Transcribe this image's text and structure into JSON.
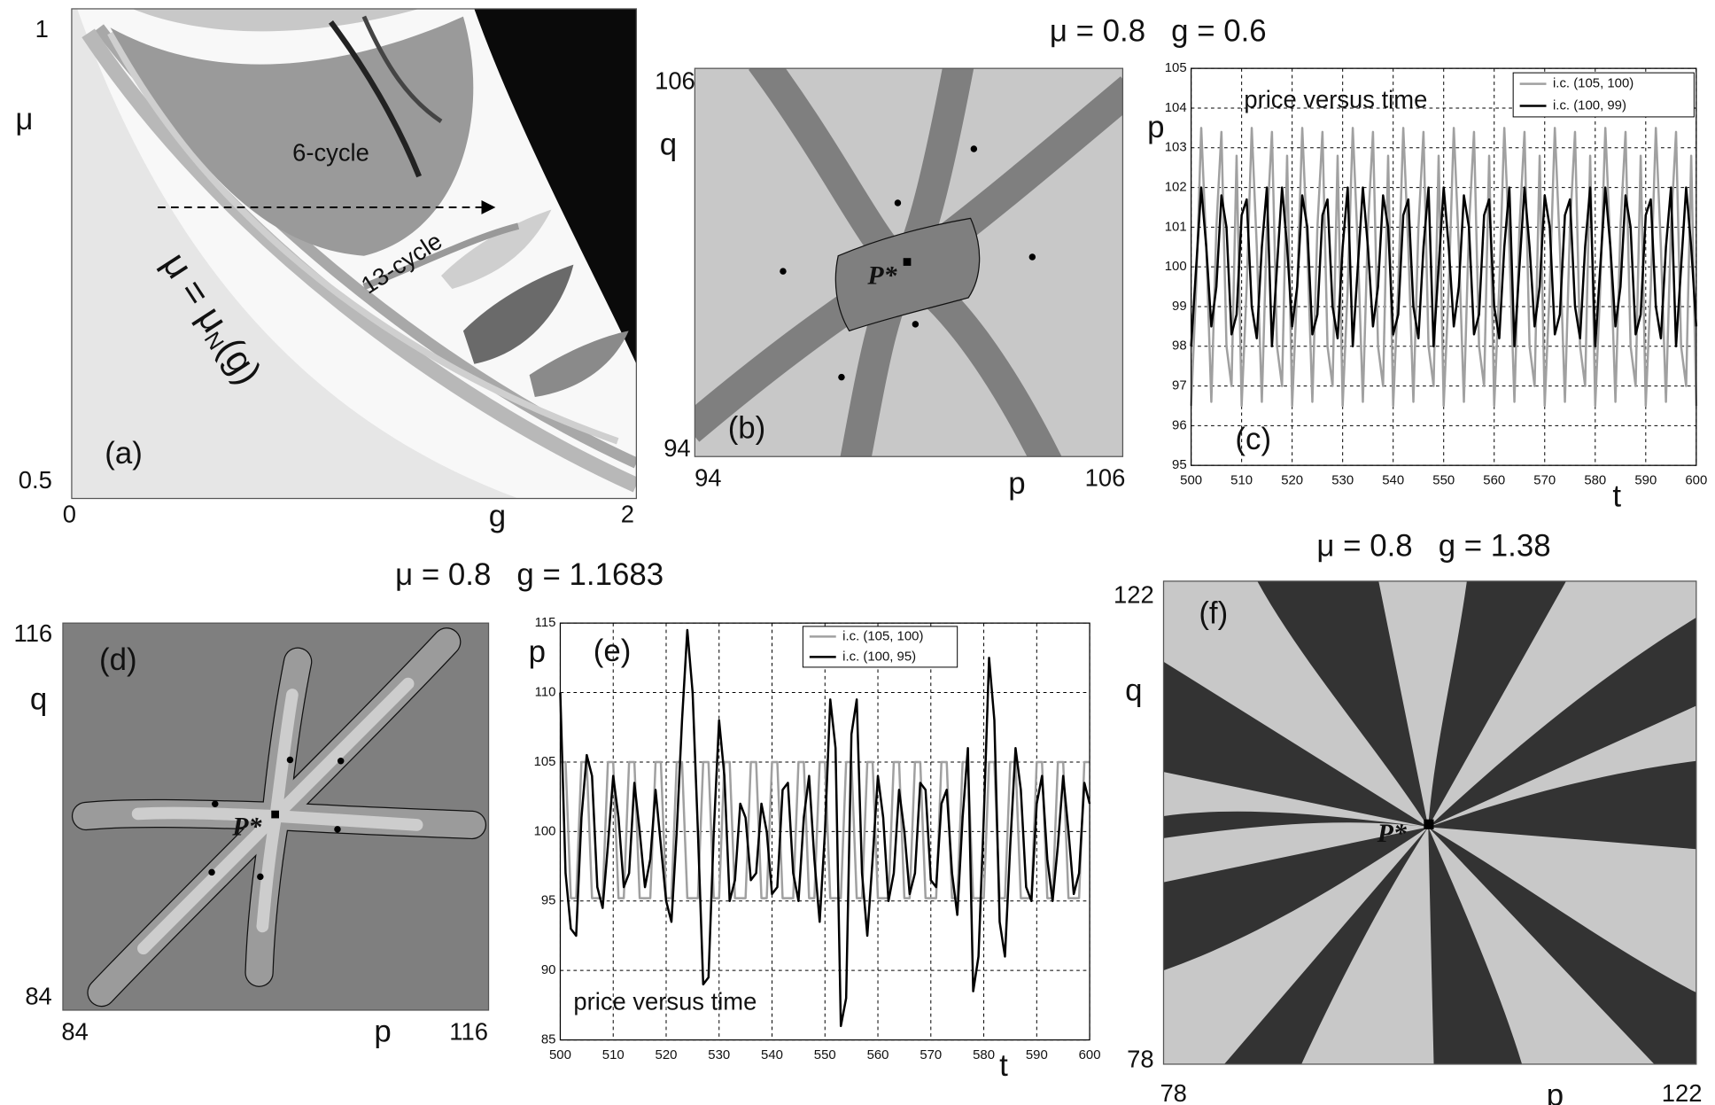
{
  "figure_titles": [
    "μ = 0.8   g = 0.6",
    "μ = 0.8   g = 1.1683",
    "μ = 0.8   g = 1.38"
  ],
  "panels": {
    "a": {
      "label": "(a)",
      "xlabel": "g",
      "ylabel": "μ",
      "xrange": [
        0,
        2
      ],
      "yrange": [
        0.5,
        1
      ],
      "annotations": [
        "6-cycle",
        "13-cycle"
      ],
      "curve_label": {
        "main": "μ = μ",
        "sub": "N",
        "tail": "(g)"
      }
    },
    "b": {
      "label": "(b)",
      "xlabel": "p",
      "ylabel": "q",
      "xrange": [
        94,
        106
      ],
      "yrange": [
        94,
        106
      ],
      "point": "P*"
    },
    "d": {
      "label": "(d)",
      "xlabel": "p",
      "ylabel": "q",
      "xrange": [
        84,
        116
      ],
      "yrange": [
        84,
        116
      ],
      "point": "P*"
    },
    "f": {
      "label": "(f)",
      "xlabel": "p",
      "ylabel": "q",
      "xrange": [
        78,
        122
      ],
      "yrange": [
        78,
        122
      ],
      "point": "P*"
    }
  },
  "chart_data": [
    {
      "type": "line",
      "label": "(c)",
      "annotation": "price versus time",
      "xlabel": "t",
      "ylabel": "p",
      "grid": true,
      "legend": "upper right",
      "xlim": [
        500,
        600
      ],
      "ylim": [
        95,
        105
      ],
      "xticks": [
        500,
        510,
        520,
        530,
        540,
        550,
        560,
        570,
        580,
        590,
        600
      ],
      "yticks": [
        95,
        96,
        97,
        98,
        99,
        100,
        101,
        102,
        103,
        104,
        105
      ],
      "x": [
        500,
        501,
        502,
        503,
        504,
        505,
        506,
        507,
        508,
        509,
        510,
        511,
        512,
        513,
        514,
        515,
        516,
        517,
        518,
        519,
        520,
        521,
        522,
        523,
        524,
        525,
        526,
        527,
        528,
        529,
        530,
        531,
        532,
        533,
        534,
        535,
        536,
        537,
        538,
        539,
        540,
        541,
        542,
        543,
        544,
        545,
        546,
        547,
        548,
        549,
        550,
        551,
        552,
        553,
        554,
        555,
        556,
        557,
        558,
        559,
        560,
        561,
        562,
        563,
        564,
        565,
        566,
        567,
        568,
        569,
        570,
        571,
        572,
        573,
        574,
        575,
        576,
        577,
        578,
        579,
        580,
        581,
        582,
        583,
        584,
        585,
        586,
        587,
        588,
        589,
        590,
        591,
        592,
        593,
        594,
        595,
        596,
        597,
        598,
        599,
        600
      ],
      "series": [
        {
          "name": "i.c. (105, 100)",
          "color": "#a0a0a0",
          "values": [
            96.5,
            99.5,
            103.5,
            100.5,
            96.6,
            101,
            103.4,
            98,
            97,
            102.8,
            96.5,
            99.5,
            103.5,
            100.5,
            96.6,
            101,
            103.4,
            98,
            97,
            102.8,
            96.5,
            99.5,
            103.5,
            100.5,
            96.6,
            101,
            103.4,
            98,
            97,
            102.8,
            96.5,
            99.5,
            103.5,
            100.5,
            96.6,
            101,
            103.4,
            98,
            97,
            102.8,
            96.5,
            99.5,
            103.5,
            100.5,
            96.6,
            101,
            103.4,
            98,
            97,
            102.8,
            96.5,
            99.5,
            103.5,
            100.5,
            96.6,
            101,
            103.4,
            98,
            97,
            102.8,
            96.5,
            99.5,
            103.5,
            100.5,
            96.6,
            101,
            103.4,
            98,
            97,
            102.8,
            96.5,
            99.5,
            103.5,
            100.5,
            96.6,
            101,
            103.4,
            98,
            97,
            102.8,
            96.5,
            99.5,
            103.5,
            100.5,
            96.6,
            101,
            103.4,
            98,
            97,
            102.8,
            96.5,
            99.5,
            103.5,
            100.5,
            96.6,
            101,
            103.4,
            98,
            97,
            102.8,
            96.5
          ]
        },
        {
          "name": "i.c. (100, 99)",
          "color": "#000000",
          "values": [
            98,
            100,
            102,
            100.5,
            98.5,
            99.5,
            101.8,
            101,
            98.3,
            98.8,
            101.3,
            101.7,
            99,
            98.2,
            100.5,
            102,
            98,
            100,
            102,
            100.5,
            98.5,
            99.5,
            101.8,
            101,
            98.3,
            98.8,
            101.3,
            101.7,
            99,
            98.2,
            100.5,
            102,
            98,
            100,
            102,
            100.5,
            98.5,
            99.5,
            101.8,
            101,
            98.3,
            98.8,
            101.3,
            101.7,
            99,
            98.2,
            100.5,
            102,
            98,
            100,
            102,
            100.5,
            98.5,
            99.5,
            101.8,
            101,
            98.3,
            98.8,
            101.3,
            101.7,
            99,
            98.2,
            100.5,
            102,
            98,
            100,
            102,
            100.5,
            98.5,
            99.5,
            101.8,
            101,
            98.3,
            98.8,
            101.3,
            101.7,
            99,
            98.2,
            100.5,
            102,
            98,
            100,
            102,
            100.5,
            98.5,
            99.5,
            101.8,
            101,
            98.3,
            98.8,
            101.3,
            101.7,
            99,
            98.2,
            100.5,
            102,
            98,
            100,
            102,
            100.5,
            98.5
          ]
        }
      ]
    },
    {
      "type": "line",
      "label": "(e)",
      "annotation": "price versus time",
      "xlabel": "t",
      "ylabel": "p",
      "grid": true,
      "legend": "upper center",
      "xlim": [
        500,
        600
      ],
      "ylim": [
        85,
        115
      ],
      "xticks": [
        500,
        510,
        520,
        530,
        540,
        550,
        560,
        570,
        580,
        590,
        600
      ],
      "yticks": [
        85,
        90,
        95,
        100,
        105,
        110,
        115
      ],
      "x": [
        500,
        501,
        502,
        503,
        504,
        505,
        506,
        507,
        508,
        509,
        510,
        511,
        512,
        513,
        514,
        515,
        516,
        517,
        518,
        519,
        520,
        521,
        522,
        523,
        524,
        525,
        526,
        527,
        528,
        529,
        530,
        531,
        532,
        533,
        534,
        535,
        536,
        537,
        538,
        539,
        540,
        541,
        542,
        543,
        544,
        545,
        546,
        547,
        548,
        549,
        550,
        551,
        552,
        553,
        554,
        555,
        556,
        557,
        558,
        559,
        560,
        561,
        562,
        563,
        564,
        565,
        566,
        567,
        568,
        569,
        570,
        571,
        572,
        573,
        574,
        575,
        576,
        577,
        578,
        579,
        580,
        581,
        582,
        583,
        584,
        585,
        586,
        587,
        588,
        589,
        590,
        591,
        592,
        593,
        594,
        595,
        596,
        597,
        598,
        599,
        600
      ],
      "series": [
        {
          "name": "i.c. (105, 100)",
          "color": "#a0a0a0",
          "values": [
            105,
            105,
            95.2,
            95.2,
            105,
            105,
            95.2,
            95.2,
            95.2,
            105,
            105,
            95.2,
            95.2,
            105,
            105,
            95.2,
            95.2,
            95.2,
            105,
            105,
            95.2,
            95.2,
            105,
            105,
            95.2,
            95.2,
            95.2,
            105,
            105,
            95.2,
            95.2,
            105,
            105,
            95.2,
            95.2,
            95.2,
            105,
            105,
            95.2,
            95.2,
            105,
            105,
            95.2,
            95.2,
            95.2,
            105,
            105,
            95.2,
            95.2,
            105,
            105,
            95.2,
            95.2,
            95.2,
            105,
            105,
            95.2,
            95.2,
            105,
            105,
            95.2,
            95.2,
            95.2,
            105,
            105,
            95.2,
            95.2,
            105,
            105,
            95.2,
            95.2,
            95.2,
            105,
            105,
            95.2,
            95.2,
            105,
            105,
            95.2,
            95.2,
            95.2,
            105,
            105,
            95.2,
            95.2,
            105,
            105,
            95.2,
            95.2,
            95.2,
            105,
            105,
            95.2,
            95.2,
            105,
            105,
            95.2,
            95.2,
            95.2,
            105,
            105
          ]
        },
        {
          "name": "i.c. (100, 95)",
          "color": "#000000",
          "values": [
            110,
            97,
            93,
            92.5,
            101,
            105.5,
            104,
            96,
            94.5,
            99,
            104,
            101,
            96,
            97,
            103.5,
            100,
            96,
            98,
            103,
            99,
            95,
            93.5,
            100,
            108,
            114.5,
            110,
            100,
            89,
            89.5,
            100,
            108,
            104,
            95,
            96.5,
            102,
            101,
            96.5,
            97,
            102,
            100,
            95.5,
            96,
            103,
            103.5,
            97,
            95,
            101,
            104,
            98,
            93.5,
            100,
            109.5,
            106,
            86,
            88,
            107,
            109.5,
            97,
            92.5,
            98,
            104,
            101,
            95,
            97,
            103,
            100,
            95.5,
            97,
            103.5,
            103,
            96.5,
            96,
            102,
            103,
            97,
            94,
            101,
            106,
            88.5,
            91,
            101,
            112.5,
            108,
            93.5,
            91,
            99,
            106,
            103,
            96,
            95,
            102,
            104,
            98,
            95,
            99,
            104,
            100,
            95.5,
            97,
            103.5,
            102
          ]
        }
      ]
    }
  ]
}
